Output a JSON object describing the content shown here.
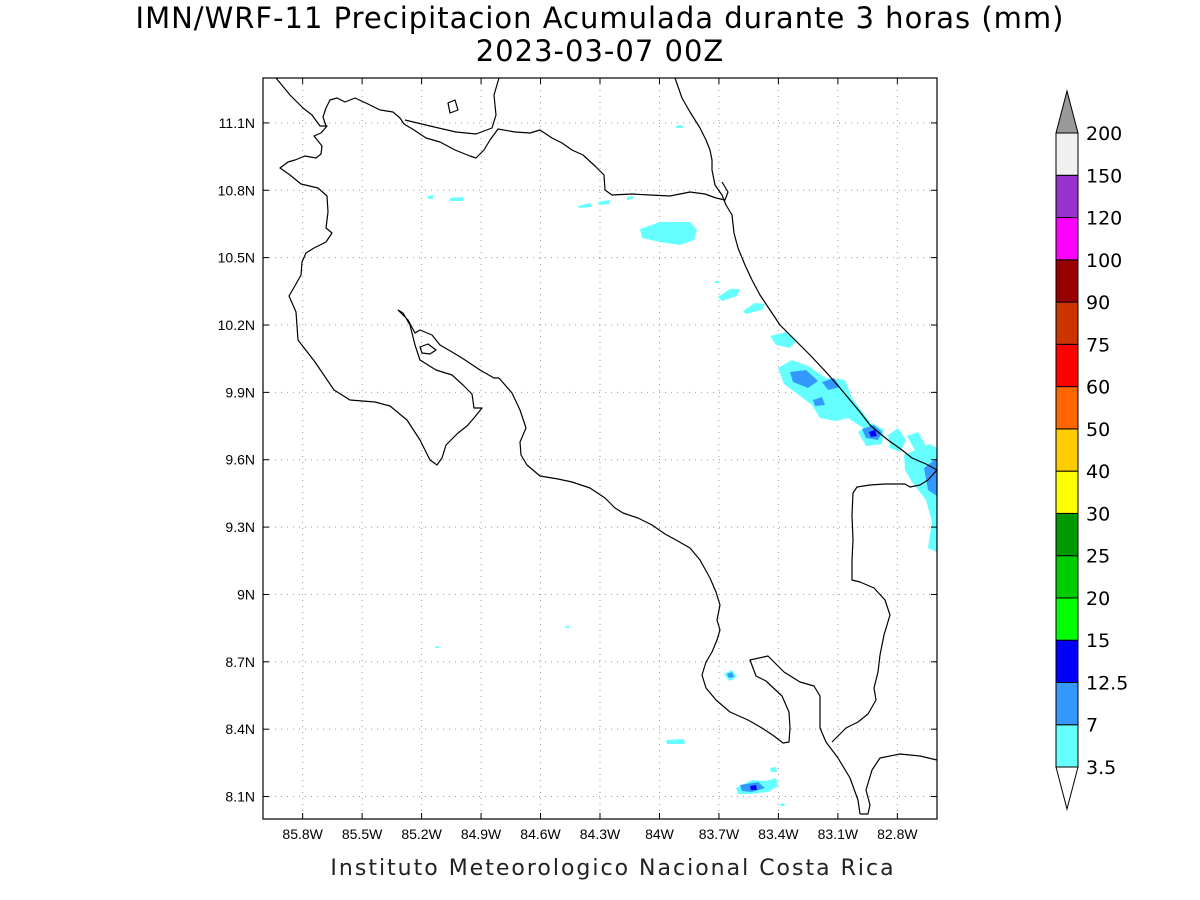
{
  "title": {
    "line1": "IMN/WRF-11 Precipitacion Acumulada durante 3 horas (mm)",
    "line2": "2023-03-07 00Z"
  },
  "footer": "Instituto Meteorologico Nacional Costa Rica",
  "map": {
    "lon_range": [
      -86.0,
      -82.6
    ],
    "lat_range": [
      8.0,
      11.3
    ],
    "x_ticks": [
      {
        "value": -85.8,
        "label": "85.8W"
      },
      {
        "value": -85.5,
        "label": "85.5W"
      },
      {
        "value": -85.2,
        "label": "85.2W"
      },
      {
        "value": -84.9,
        "label": "84.9W"
      },
      {
        "value": -84.6,
        "label": "84.6W"
      },
      {
        "value": -84.3,
        "label": "84.3W"
      },
      {
        "value": -84.0,
        "label": "84W"
      },
      {
        "value": -83.7,
        "label": "83.7W"
      },
      {
        "value": -83.4,
        "label": "83.4W"
      },
      {
        "value": -83.1,
        "label": "83.1W"
      },
      {
        "value": -82.8,
        "label": "82.8W"
      }
    ],
    "y_ticks": [
      {
        "value": 8.1,
        "label": "8.1N"
      },
      {
        "value": 8.4,
        "label": "8.4N"
      },
      {
        "value": 8.7,
        "label": "8.7N"
      },
      {
        "value": 9.0,
        "label": "9N"
      },
      {
        "value": 9.3,
        "label": "9.3N"
      },
      {
        "value": 9.6,
        "label": "9.6N"
      },
      {
        "value": 9.9,
        "label": "9.9N"
      },
      {
        "value": 10.2,
        "label": "10.2N"
      },
      {
        "value": 10.5,
        "label": "10.5N"
      },
      {
        "value": 10.8,
        "label": "10.8N"
      },
      {
        "value": 11.1,
        "label": "11.1N"
      }
    ],
    "grid": "dotted"
  },
  "legend": {
    "bins": [
      {
        "label": "3.5",
        "color": "#66ffff"
      },
      {
        "label": "7",
        "color": "#3399ff"
      },
      {
        "label": "12.5",
        "color": "#0000ff"
      },
      {
        "label": "15",
        "color": "#00ff00"
      },
      {
        "label": "20",
        "color": "#00cc00"
      },
      {
        "label": "25",
        "color": "#009900"
      },
      {
        "label": "30",
        "color": "#ffff00"
      },
      {
        "label": "40",
        "color": "#ffcc00"
      },
      {
        "label": "50",
        "color": "#ff6600"
      },
      {
        "label": "60",
        "color": "#ff0000"
      },
      {
        "label": "75",
        "color": "#cc3300"
      },
      {
        "label": "90",
        "color": "#990000"
      },
      {
        "label": "100",
        "color": "#ff00ff"
      },
      {
        "label": "120",
        "color": "#9933cc"
      },
      {
        "label": "150",
        "color": "#f0f0f0"
      },
      {
        "label": "200",
        "color": ""
      }
    ],
    "over_color": "#999999",
    "under_color": "#ffffff"
  }
}
